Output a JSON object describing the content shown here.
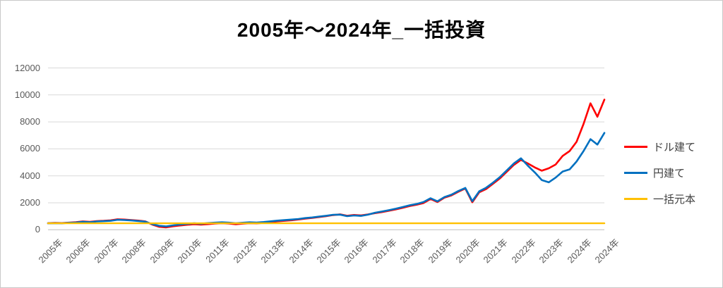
{
  "chart_data": {
    "type": "line",
    "title": "2005年～2024年_一括投資",
    "xlabel": "",
    "ylabel": "",
    "ylim": [
      0,
      12000
    ],
    "y_ticks": [
      0,
      2000,
      4000,
      6000,
      8000,
      10000,
      12000
    ],
    "x_domain": [
      2005,
      2025
    ],
    "x_step": 0.25,
    "x_tick_labels": [
      "2005年",
      "2006年",
      "2007年",
      "2008年",
      "2009年",
      "2010年",
      "2011年",
      "2012年",
      "2013年",
      "2014年",
      "2015年",
      "2016年",
      "2017年",
      "2018年",
      "2019年",
      "2020年",
      "2021年",
      "2022年",
      "2023年",
      "2024年",
      "2024年"
    ],
    "grid": "horizontal",
    "legend_position": "right",
    "series": [
      {
        "name": "ドル建て",
        "color": "#FF0000",
        "values": [
          490,
          505,
          495,
          530,
          560,
          620,
          585,
          640,
          665,
          700,
          780,
          755,
          720,
          680,
          620,
          380,
          220,
          180,
          260,
          320,
          370,
          410,
          380,
          420,
          460,
          490,
          460,
          415,
          455,
          490,
          475,
          515,
          565,
          625,
          665,
          705,
          760,
          830,
          885,
          945,
          1010,
          1090,
          1145,
          1040,
          1095,
          1065,
          1140,
          1230,
          1310,
          1405,
          1510,
          1630,
          1760,
          1860,
          1985,
          2280,
          2060,
          2380,
          2550,
          2820,
          3060,
          2040,
          2780,
          3020,
          3420,
          3820,
          4320,
          4820,
          5180,
          4920,
          4620,
          4380,
          4560,
          4840,
          5480,
          5840,
          6520,
          7850,
          9380,
          8380,
          9650
        ]
      },
      {
        "name": "円建て",
        "color": "#0070C0",
        "values": [
          480,
          490,
          482,
          515,
          540,
          595,
          560,
          615,
          635,
          665,
          740,
          720,
          690,
          650,
          600,
          420,
          290,
          250,
          330,
          390,
          440,
          480,
          450,
          495,
          530,
          555,
          530,
          480,
          520,
          555,
          540,
          575,
          625,
          680,
          715,
          755,
          800,
          865,
          915,
          975,
          1040,
          1110,
          1125,
          1010,
          1060,
          1030,
          1115,
          1265,
          1355,
          1450,
          1560,
          1685,
          1815,
          1910,
          2060,
          2340,
          2110,
          2430,
          2600,
          2870,
          3100,
          2120,
          2850,
          3120,
          3500,
          3920,
          4420,
          4930,
          5300,
          4750,
          4250,
          3680,
          3520,
          3870,
          4320,
          4480,
          5060,
          5840,
          6720,
          6320,
          7180
        ]
      },
      {
        "name": "一括元本",
        "color": "#FFC000",
        "x": [
          2005,
          2025
        ],
        "values": [
          480,
          480
        ]
      }
    ],
    "colors": {
      "gridline": "#D9D9D9",
      "axis_line": "#BFBFBF",
      "tick_text": "#595959",
      "legend_text": "#404040",
      "title_text": "#000000",
      "background": "#FFFFFF"
    }
  }
}
